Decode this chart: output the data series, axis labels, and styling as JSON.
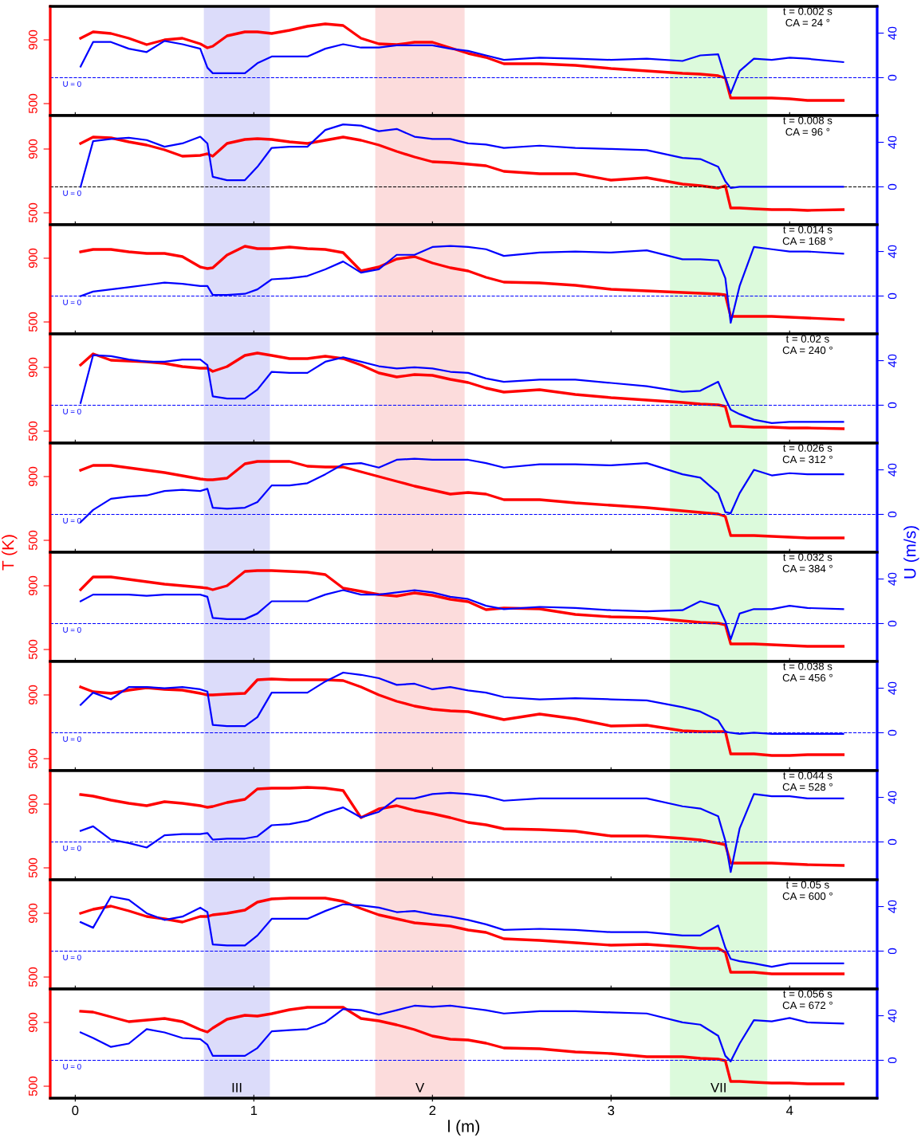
{
  "chart_data": [
    {
      "type": "line",
      "annotations": [
        "t = 0.002 s",
        "CA = 24 °"
      ],
      "x": [
        0.03,
        0.1,
        0.2,
        0.3,
        0.4,
        0.5,
        0.6,
        0.7,
        0.74,
        0.77,
        0.85,
        0.95,
        1.02,
        1.1,
        1.2,
        1.3,
        1.4,
        1.5,
        1.6,
        1.7,
        1.8,
        1.9,
        2.0,
        2.1,
        2.2,
        2.3,
        2.4,
        2.6,
        2.8,
        3.0,
        3.2,
        3.4,
        3.5,
        3.6,
        3.64,
        3.67,
        3.72,
        3.8,
        3.9,
        4.0,
        4.1,
        4.3
      ],
      "xlim": [
        -0.14,
        4.49
      ],
      "xticks": [
        0,
        1,
        2,
        3,
        4
      ],
      "ylim": [
        425,
        1110
      ],
      "yticks": [
        500,
        900
      ],
      "y2lim": [
        -34,
        64
      ],
      "y2ticks": [
        0,
        40
      ],
      "tick_labels": "y",
      "series": [
        {
          "color": "#ff0000",
          "values": [
            910,
            950,
            940,
            910,
            870,
            900,
            910,
            875,
            850,
            860,
            925,
            950,
            950,
            940,
            960,
            985,
            1000,
            990,
            910,
            875,
            870,
            885,
            885,
            850,
            815,
            790,
            750,
            750,
            740,
            720,
            705,
            690,
            685,
            675,
            660,
            535,
            535,
            535,
            535,
            530,
            520,
            520
          ]
        },
        {
          "color": "#0000ff",
          "axis": "y2",
          "values": [
            10,
            32,
            32,
            26,
            23,
            33,
            30,
            26,
            9,
            4,
            4,
            4,
            13,
            19,
            19,
            19,
            26,
            30,
            27,
            27,
            29,
            29,
            29,
            26,
            24,
            20,
            16,
            18,
            17,
            16,
            17,
            15,
            20,
            21,
            0,
            -14,
            6,
            17,
            16,
            18,
            17,
            14
          ]
        }
      ],
      "bands": [
        {
          "axis": "x",
          "from": 0.72,
          "to": 1.09,
          "color": "#dcdcfa"
        },
        {
          "axis": "x",
          "from": 1.68,
          "to": 2.18,
          "color": "#fcdcdc"
        },
        {
          "axis": "x",
          "from": 3.33,
          "to": 3.875,
          "color": "#dcfadc"
        }
      ],
      "ref_lines": [
        {
          "axis": "y2",
          "value": 0,
          "label": "U = 0",
          "color": "#0000ff",
          "line_style": "dashed"
        }
      ]
    },
    {
      "type": "line",
      "annotations": [
        "t = 0.008 s",
        "CA = 96 °"
      ],
      "x": [
        0.03,
        0.1,
        0.2,
        0.3,
        0.4,
        0.5,
        0.6,
        0.7,
        0.74,
        0.77,
        0.85,
        0.95,
        1.02,
        1.1,
        1.2,
        1.3,
        1.4,
        1.5,
        1.6,
        1.7,
        1.8,
        1.9,
        2.0,
        2.1,
        2.2,
        2.3,
        2.4,
        2.6,
        2.8,
        3.0,
        3.2,
        3.4,
        3.5,
        3.6,
        3.64,
        3.67,
        3.72,
        3.8,
        3.9,
        4.0,
        4.1,
        4.3
      ],
      "xlim": [
        -0.14,
        4.49
      ],
      "xticks": [
        0,
        1,
        2,
        3,
        4
      ],
      "ylim": [
        425,
        1110
      ],
      "yticks": [
        500,
        900
      ],
      "y2lim": [
        -34,
        64
      ],
      "y2ticks": [
        0,
        40
      ],
      "tick_labels": "y",
      "series": [
        {
          "color": "#ff0000",
          "values": [
            935,
            975,
            970,
            945,
            925,
            895,
            855,
            860,
            870,
            855,
            935,
            960,
            965,
            960,
            945,
            935,
            955,
            975,
            955,
            925,
            885,
            850,
            820,
            815,
            805,
            795,
            760,
            745,
            745,
            705,
            720,
            680,
            670,
            655,
            670,
            530,
            530,
            525,
            520,
            520,
            515,
            520
          ]
        },
        {
          "color": "#0000ff",
          "axis": "y2",
          "values": [
            0,
            41,
            43,
            44,
            42,
            36,
            39,
            45,
            39,
            9,
            6,
            6,
            18,
            35,
            36,
            36,
            51,
            56,
            55,
            50,
            52,
            45,
            43,
            43,
            39,
            38,
            35,
            37,
            35,
            34,
            33,
            26,
            25,
            18,
            5,
            -1,
            0,
            0,
            0,
            0,
            0,
            0
          ]
        }
      ],
      "bands": [
        {
          "axis": "x",
          "from": 0.72,
          "to": 1.09,
          "color": "#dcdcfa"
        },
        {
          "axis": "x",
          "from": 1.68,
          "to": 2.18,
          "color": "#fcdcdc"
        },
        {
          "axis": "x",
          "from": 3.33,
          "to": 3.875,
          "color": "#dcfadc"
        }
      ],
      "ref_lines": [
        {
          "axis": "y2",
          "value": 0,
          "label": "U = 0",
          "color": "#000000",
          "line_style": "dashed"
        }
      ]
    },
    {
      "type": "line",
      "annotations": [
        "t = 0.014 s",
        "CA = 168 °"
      ],
      "x": [
        0.03,
        0.1,
        0.2,
        0.3,
        0.4,
        0.5,
        0.6,
        0.7,
        0.74,
        0.77,
        0.85,
        0.95,
        1.02,
        1.1,
        1.2,
        1.3,
        1.4,
        1.5,
        1.6,
        1.7,
        1.8,
        1.9,
        2.0,
        2.1,
        2.2,
        2.3,
        2.4,
        2.6,
        2.8,
        3.0,
        3.2,
        3.4,
        3.5,
        3.6,
        3.64,
        3.67,
        3.72,
        3.8,
        3.9,
        4.0,
        4.1,
        4.3
      ],
      "xlim": [
        -0.14,
        4.49
      ],
      "xticks": [
        0,
        1,
        2,
        3,
        4
      ],
      "ylim": [
        425,
        1110
      ],
      "yticks": [
        500,
        900
      ],
      "y2lim": [
        -34,
        64
      ],
      "y2ticks": [
        0,
        40
      ],
      "tick_labels": "y",
      "series": [
        {
          "color": "#ff0000",
          "values": [
            940,
            955,
            955,
            940,
            930,
            930,
            910,
            845,
            835,
            840,
            920,
            975,
            960,
            960,
            970,
            960,
            955,
            935,
            820,
            845,
            895,
            910,
            870,
            840,
            820,
            780,
            750,
            745,
            730,
            705,
            695,
            685,
            680,
            675,
            670,
            535,
            535,
            535,
            535,
            530,
            525,
            515
          ]
        },
        {
          "color": "#0000ff",
          "axis": "y2",
          "values": [
            0,
            4,
            6,
            8,
            10,
            12,
            11,
            9,
            9,
            1,
            1,
            2,
            6,
            15,
            16,
            18,
            24,
            31,
            21,
            24,
            37,
            37,
            44,
            45,
            44,
            42,
            36,
            39,
            40,
            39,
            41,
            33,
            33,
            32,
            16,
            -24,
            9,
            44,
            42,
            40,
            40,
            38
          ]
        }
      ],
      "bands": [
        {
          "axis": "x",
          "from": 0.72,
          "to": 1.09,
          "color": "#dcdcfa"
        },
        {
          "axis": "x",
          "from": 1.68,
          "to": 2.18,
          "color": "#fcdcdc"
        },
        {
          "axis": "x",
          "from": 3.33,
          "to": 3.875,
          "color": "#dcfadc"
        }
      ],
      "ref_lines": [
        {
          "axis": "y2",
          "value": 0,
          "label": "U = 0",
          "color": "#0000ff",
          "line_style": "dashed"
        }
      ]
    },
    {
      "type": "line",
      "annotations": [
        "t = 0.02 s",
        "CA = 240 °"
      ],
      "x": [
        0.03,
        0.1,
        0.2,
        0.3,
        0.4,
        0.5,
        0.6,
        0.7,
        0.74,
        0.77,
        0.85,
        0.95,
        1.02,
        1.1,
        1.2,
        1.3,
        1.4,
        1.5,
        1.6,
        1.7,
        1.8,
        1.9,
        2.0,
        2.1,
        2.2,
        2.3,
        2.4,
        2.6,
        2.8,
        3.0,
        3.2,
        3.4,
        3.5,
        3.6,
        3.64,
        3.67,
        3.72,
        3.8,
        3.9,
        4.0,
        4.1,
        4.3
      ],
      "xlim": [
        -0.14,
        4.49
      ],
      "xticks": [
        0,
        1,
        2,
        3,
        4
      ],
      "ylim": [
        425,
        1110
      ],
      "yticks": [
        500,
        900
      ],
      "y2lim": [
        -34,
        64
      ],
      "y2ticks": [
        0,
        40
      ],
      "tick_labels": "y",
      "series": [
        {
          "color": "#ff0000",
          "values": [
            915,
            985,
            945,
            940,
            935,
            925,
            905,
            895,
            895,
            875,
            905,
            975,
            990,
            975,
            955,
            955,
            970,
            955,
            915,
            865,
            840,
            855,
            850,
            825,
            805,
            770,
            745,
            760,
            730,
            710,
            695,
            680,
            670,
            665,
            655,
            530,
            530,
            525,
            525,
            520,
            520,
            515
          ]
        },
        {
          "color": "#0000ff",
          "axis": "y2",
          "values": [
            2,
            45,
            44,
            41,
            39,
            39,
            41,
            41,
            36,
            8,
            6,
            6,
            14,
            30,
            29,
            29,
            39,
            43,
            39,
            35,
            33,
            34,
            33,
            30,
            29,
            24,
            21,
            23,
            23,
            20,
            17,
            12,
            13,
            21,
            6,
            -4,
            -8,
            -13,
            -16,
            -15,
            -15,
            -15
          ]
        }
      ],
      "bands": [
        {
          "axis": "x",
          "from": 0.72,
          "to": 1.09,
          "color": "#dcdcfa"
        },
        {
          "axis": "x",
          "from": 1.68,
          "to": 2.18,
          "color": "#fcdcdc"
        },
        {
          "axis": "x",
          "from": 3.33,
          "to": 3.875,
          "color": "#dcfadc"
        }
      ],
      "ref_lines": [
        {
          "axis": "y2",
          "value": 0,
          "label": "U = 0",
          "color": "#0000ff",
          "line_style": "dashed"
        }
      ]
    },
    {
      "type": "line",
      "annotations": [
        "t = 0.026 s",
        "CA = 312 °"
      ],
      "ylabel": "T (K)",
      "y2label": "U (m/s)",
      "x": [
        0.03,
        0.1,
        0.2,
        0.3,
        0.4,
        0.5,
        0.6,
        0.7,
        0.74,
        0.77,
        0.85,
        0.95,
        1.02,
        1.1,
        1.2,
        1.3,
        1.4,
        1.5,
        1.6,
        1.7,
        1.8,
        1.9,
        2.0,
        2.1,
        2.2,
        2.3,
        2.4,
        2.6,
        2.8,
        3.0,
        3.2,
        3.4,
        3.5,
        3.6,
        3.64,
        3.67,
        3.72,
        3.8,
        3.9,
        4.0,
        4.1,
        4.3
      ],
      "xlim": [
        -0.14,
        4.49
      ],
      "xticks": [
        0,
        1,
        2,
        3,
        4
      ],
      "ylim": [
        425,
        1110
      ],
      "yticks": [
        500,
        900
      ],
      "y2lim": [
        -34,
        64
      ],
      "y2ticks": [
        0,
        40
      ],
      "tick_labels": "y",
      "series": [
        {
          "color": "#ff0000",
          "values": [
            940,
            970,
            970,
            955,
            940,
            925,
            905,
            885,
            880,
            880,
            890,
            980,
            995,
            995,
            995,
            965,
            960,
            960,
            930,
            900,
            870,
            840,
            815,
            790,
            800,
            790,
            755,
            755,
            735,
            720,
            705,
            685,
            675,
            665,
            650,
            530,
            530,
            530,
            525,
            520,
            515,
            515
          ]
        },
        {
          "color": "#0000ff",
          "axis": "y2",
          "values": [
            -7,
            4,
            14,
            16,
            17,
            21,
            22,
            21,
            23,
            6,
            5,
            6,
            11,
            26,
            26,
            28,
            36,
            45,
            46,
            42,
            49,
            50,
            49,
            49,
            49,
            46,
            42,
            45,
            45,
            44,
            46,
            36,
            33,
            19,
            2,
            1,
            19,
            40,
            35,
            37,
            36,
            36
          ]
        }
      ],
      "bands": [
        {
          "axis": "x",
          "from": 0.72,
          "to": 1.09,
          "color": "#dcdcfa"
        },
        {
          "axis": "x",
          "from": 1.68,
          "to": 2.18,
          "color": "#fcdcdc"
        },
        {
          "axis": "x",
          "from": 3.33,
          "to": 3.875,
          "color": "#dcfadc"
        }
      ],
      "ref_lines": [
        {
          "axis": "y2",
          "value": 0,
          "label": "U = 0",
          "color": "#0000ff",
          "line_style": "dashed"
        }
      ]
    },
    {
      "type": "line",
      "annotations": [
        "t = 0.032 s",
        "CA = 384 °"
      ],
      "x": [
        0.03,
        0.1,
        0.2,
        0.3,
        0.4,
        0.5,
        0.6,
        0.7,
        0.74,
        0.77,
        0.85,
        0.95,
        1.02,
        1.1,
        1.2,
        1.3,
        1.4,
        1.5,
        1.6,
        1.7,
        1.8,
        1.9,
        2.0,
        2.1,
        2.2,
        2.3,
        2.4,
        2.6,
        2.8,
        3.0,
        3.2,
        3.4,
        3.5,
        3.6,
        3.64,
        3.67,
        3.72,
        3.8,
        3.9,
        4.0,
        4.1,
        4.3
      ],
      "xlim": [
        -0.14,
        4.49
      ],
      "xticks": [
        0,
        1,
        2,
        3,
        4
      ],
      "ylim": [
        425,
        1110
      ],
      "yticks": [
        500,
        900
      ],
      "y2lim": [
        -34,
        64
      ],
      "y2ticks": [
        0,
        40
      ],
      "tick_labels": "y",
      "series": [
        {
          "color": "#ff0000",
          "values": [
            875,
            955,
            955,
            940,
            925,
            910,
            900,
            890,
            885,
            875,
            900,
            990,
            995,
            995,
            990,
            985,
            970,
            885,
            865,
            845,
            835,
            855,
            840,
            815,
            800,
            750,
            760,
            755,
            720,
            705,
            700,
            680,
            670,
            665,
            655,
            535,
            535,
            535,
            530,
            525,
            520,
            520
          ]
        },
        {
          "color": "#0000ff",
          "axis": "y2",
          "values": [
            20,
            26,
            26,
            26,
            25,
            26,
            26,
            26,
            24,
            5,
            4,
            4,
            9,
            20,
            20,
            20,
            26,
            30,
            26,
            26,
            28,
            30,
            28,
            24,
            22,
            16,
            13,
            15,
            14,
            12,
            11,
            12,
            20,
            16,
            2,
            -14,
            9,
            13,
            13,
            16,
            14,
            13
          ]
        }
      ],
      "bands": [
        {
          "axis": "x",
          "from": 0.72,
          "to": 1.09,
          "color": "#dcdcfa"
        },
        {
          "axis": "x",
          "from": 1.68,
          "to": 2.18,
          "color": "#fcdcdc"
        },
        {
          "axis": "x",
          "from": 3.33,
          "to": 3.875,
          "color": "#dcfadc"
        }
      ],
      "ref_lines": [
        {
          "axis": "y2",
          "value": 0,
          "label": "U = 0",
          "color": "#0000ff",
          "line_style": "dashed"
        }
      ]
    },
    {
      "type": "line",
      "annotations": [
        "t = 0.038 s",
        "CA = 456 °"
      ],
      "x": [
        0.03,
        0.1,
        0.2,
        0.3,
        0.4,
        0.5,
        0.6,
        0.7,
        0.74,
        0.77,
        0.85,
        0.95,
        1.02,
        1.1,
        1.2,
        1.3,
        1.4,
        1.5,
        1.6,
        1.7,
        1.8,
        1.9,
        2.0,
        2.1,
        2.2,
        2.3,
        2.4,
        2.6,
        2.8,
        3.0,
        3.2,
        3.4,
        3.5,
        3.6,
        3.64,
        3.67,
        3.72,
        3.8,
        3.9,
        4.0,
        4.1,
        4.3
      ],
      "xlim": [
        -0.14,
        4.49
      ],
      "xticks": [
        0,
        1,
        2,
        3,
        4
      ],
      "ylim": [
        425,
        1110
      ],
      "yticks": [
        500,
        900
      ],
      "y2lim": [
        -34,
        64
      ],
      "y2ticks": [
        0,
        40
      ],
      "tick_labels": "y",
      "series": [
        {
          "color": "#ff0000",
          "values": [
            950,
            920,
            910,
            930,
            945,
            935,
            930,
            910,
            900,
            900,
            905,
            910,
            995,
            1000,
            995,
            995,
            995,
            990,
            950,
            900,
            860,
            830,
            810,
            800,
            795,
            770,
            745,
            780,
            750,
            705,
            710,
            675,
            670,
            670,
            670,
            530,
            530,
            530,
            520,
            520,
            525,
            525
          ]
        },
        {
          "color": "#0000ff",
          "axis": "y2",
          "values": [
            25,
            36,
            30,
            41,
            41,
            40,
            41,
            39,
            37,
            7,
            6,
            6,
            14,
            36,
            36,
            36,
            46,
            54,
            52,
            49,
            43,
            44,
            39,
            41,
            38,
            36,
            32,
            30,
            31,
            30,
            29,
            23,
            19,
            11,
            1,
            0,
            -1,
            0,
            -1,
            -1,
            -1,
            -1
          ]
        }
      ],
      "bands": [
        {
          "axis": "x",
          "from": 0.72,
          "to": 1.09,
          "color": "#dcdcfa"
        },
        {
          "axis": "x",
          "from": 1.68,
          "to": 2.18,
          "color": "#fcdcdc"
        },
        {
          "axis": "x",
          "from": 3.33,
          "to": 3.875,
          "color": "#dcfadc"
        }
      ],
      "ref_lines": [
        {
          "axis": "y2",
          "value": 0,
          "label": "U = 0",
          "color": "#0000ff",
          "line_style": "dashed"
        }
      ]
    },
    {
      "type": "line",
      "annotations": [
        "t = 0.044 s",
        "CA = 528 °"
      ],
      "x": [
        0.03,
        0.1,
        0.2,
        0.3,
        0.4,
        0.5,
        0.6,
        0.7,
        0.74,
        0.77,
        0.85,
        0.95,
        1.02,
        1.1,
        1.2,
        1.3,
        1.4,
        1.5,
        1.6,
        1.7,
        1.8,
        1.9,
        2.0,
        2.1,
        2.2,
        2.3,
        2.4,
        2.6,
        2.8,
        3.0,
        3.2,
        3.4,
        3.5,
        3.6,
        3.64,
        3.67,
        3.72,
        3.8,
        3.9,
        4.0,
        4.1,
        4.3
      ],
      "xlim": [
        -0.14,
        4.49
      ],
      "xticks": [
        0,
        1,
        2,
        3,
        4
      ],
      "ylim": [
        425,
        1110
      ],
      "yticks": [
        500,
        900
      ],
      "y2lim": [
        -34,
        64
      ],
      "y2ticks": [
        0,
        40
      ],
      "tick_labels": "y",
      "series": [
        {
          "color": "#ff0000",
          "values": [
            960,
            950,
            925,
            905,
            890,
            915,
            905,
            890,
            880,
            885,
            910,
            930,
            995,
            1000,
            1000,
            1005,
            1000,
            985,
            815,
            870,
            890,
            860,
            840,
            815,
            785,
            770,
            745,
            740,
            730,
            700,
            700,
            685,
            675,
            655,
            645,
            530,
            530,
            530,
            530,
            525,
            520,
            515
          ]
        },
        {
          "color": "#0000ff",
          "axis": "y2",
          "values": [
            10,
            14,
            2,
            -1,
            -5,
            6,
            7,
            7,
            8,
            2,
            3,
            3,
            5,
            15,
            16,
            19,
            26,
            31,
            22,
            27,
            39,
            39,
            43,
            44,
            43,
            41,
            37,
            39,
            39,
            39,
            39,
            32,
            30,
            23,
            1,
            -27,
            12,
            43,
            41,
            41,
            39,
            39
          ]
        }
      ],
      "bands": [
        {
          "axis": "x",
          "from": 0.72,
          "to": 1.09,
          "color": "#dcdcfa"
        },
        {
          "axis": "x",
          "from": 1.68,
          "to": 2.18,
          "color": "#fcdcdc"
        },
        {
          "axis": "x",
          "from": 3.33,
          "to": 3.875,
          "color": "#dcfadc"
        }
      ],
      "ref_lines": [
        {
          "axis": "y2",
          "value": 0,
          "label": "U = 0",
          "color": "#0000ff",
          "line_style": "dashed"
        }
      ]
    },
    {
      "type": "line",
      "annotations": [
        "t = 0.05 s",
        "CA = 600 °"
      ],
      "x": [
        0.03,
        0.1,
        0.2,
        0.3,
        0.4,
        0.5,
        0.6,
        0.7,
        0.74,
        0.77,
        0.85,
        0.95,
        1.02,
        1.1,
        1.2,
        1.3,
        1.4,
        1.5,
        1.6,
        1.7,
        1.8,
        1.9,
        2.0,
        2.1,
        2.2,
        2.3,
        2.4,
        2.6,
        2.8,
        3.0,
        3.2,
        3.4,
        3.5,
        3.6,
        3.64,
        3.67,
        3.72,
        3.8,
        3.9,
        4.0,
        4.1,
        4.3
      ],
      "xlim": [
        -0.14,
        4.49
      ],
      "xticks": [
        0,
        1,
        2,
        3,
        4
      ],
      "ylim": [
        425,
        1110
      ],
      "yticks": [
        500,
        900
      ],
      "y2lim": [
        -34,
        64
      ],
      "y2ticks": [
        0,
        40
      ],
      "tick_labels": "y",
      "series": [
        {
          "color": "#ff0000",
          "values": [
            900,
            925,
            945,
            915,
            880,
            865,
            845,
            880,
            880,
            890,
            900,
            920,
            970,
            990,
            995,
            995,
            995,
            975,
            930,
            890,
            865,
            840,
            830,
            820,
            795,
            780,
            740,
            730,
            715,
            700,
            705,
            690,
            680,
            680,
            655,
            530,
            530,
            530,
            520,
            520,
            520,
            520
          ]
        },
        {
          "color": "#0000ff",
          "axis": "y2",
          "values": [
            26,
            21,
            49,
            46,
            34,
            28,
            31,
            39,
            35,
            6,
            5,
            5,
            14,
            29,
            29,
            29,
            36,
            42,
            41,
            39,
            35,
            36,
            33,
            31,
            28,
            24,
            19,
            20,
            19,
            17,
            17,
            14,
            14,
            23,
            3,
            -7,
            -9,
            -11,
            -14,
            -11,
            -11,
            -11
          ]
        }
      ],
      "bands": [
        {
          "axis": "x",
          "from": 0.72,
          "to": 1.09,
          "color": "#dcdcfa"
        },
        {
          "axis": "x",
          "from": 1.68,
          "to": 2.18,
          "color": "#fcdcdc"
        },
        {
          "axis": "x",
          "from": 3.33,
          "to": 3.875,
          "color": "#dcfadc"
        }
      ],
      "ref_lines": [
        {
          "axis": "y2",
          "value": 0,
          "label": "U = 0",
          "color": "#0000ff",
          "line_style": "dashed"
        }
      ]
    },
    {
      "type": "line",
      "annotations": [
        "t = 0.056 s",
        "CA = 672 °"
      ],
      "xlabel": "l (m)",
      "x": [
        0.03,
        0.1,
        0.2,
        0.3,
        0.4,
        0.5,
        0.6,
        0.7,
        0.74,
        0.77,
        0.85,
        0.95,
        1.02,
        1.1,
        1.2,
        1.3,
        1.4,
        1.5,
        1.6,
        1.7,
        1.8,
        1.9,
        2.0,
        2.1,
        2.2,
        2.3,
        2.4,
        2.6,
        2.8,
        3.0,
        3.2,
        3.4,
        3.5,
        3.6,
        3.64,
        3.67,
        3.72,
        3.8,
        3.9,
        4.0,
        4.1,
        4.3
      ],
      "xlim": [
        -0.14,
        4.49
      ],
      "xticks": [
        0,
        1,
        2,
        3,
        4
      ],
      "ylim": [
        425,
        1110
      ],
      "yticks": [
        500,
        900
      ],
      "y2lim": [
        -34,
        64
      ],
      "y2ticks": [
        0,
        40
      ],
      "series": [
        {
          "color": "#ff0000",
          "values": [
            970,
            965,
            935,
            905,
            915,
            925,
            905,
            855,
            840,
            865,
            920,
            945,
            940,
            955,
            980,
            995,
            995,
            995,
            925,
            910,
            885,
            855,
            815,
            795,
            790,
            770,
            740,
            735,
            715,
            705,
            685,
            685,
            675,
            670,
            660,
            530,
            530,
            525,
            520,
            520,
            515,
            515
          ]
        },
        {
          "color": "#0000ff",
          "axis": "y2",
          "values": [
            25,
            20,
            12,
            15,
            28,
            25,
            20,
            19,
            14,
            4,
            4,
            4,
            11,
            26,
            27,
            28,
            34,
            46,
            45,
            41,
            45,
            49,
            48,
            49,
            47,
            45,
            42,
            44,
            44,
            43,
            42,
            34,
            32,
            22,
            4,
            -1,
            15,
            36,
            35,
            38,
            34,
            33
          ]
        }
      ],
      "bands": [
        {
          "axis": "x",
          "from": 0.72,
          "to": 1.09,
          "color": "#dcdcfa",
          "label": "III"
        },
        {
          "axis": "x",
          "from": 1.68,
          "to": 2.18,
          "color": "#fcdcdc",
          "label": "V"
        },
        {
          "axis": "x",
          "from": 3.33,
          "to": 3.875,
          "color": "#dcfadc",
          "label": "VII"
        }
      ],
      "ref_lines": [
        {
          "axis": "y2",
          "value": 0,
          "label": "U = 0",
          "color": "#0000ff",
          "line_style": "dashed"
        }
      ]
    }
  ]
}
